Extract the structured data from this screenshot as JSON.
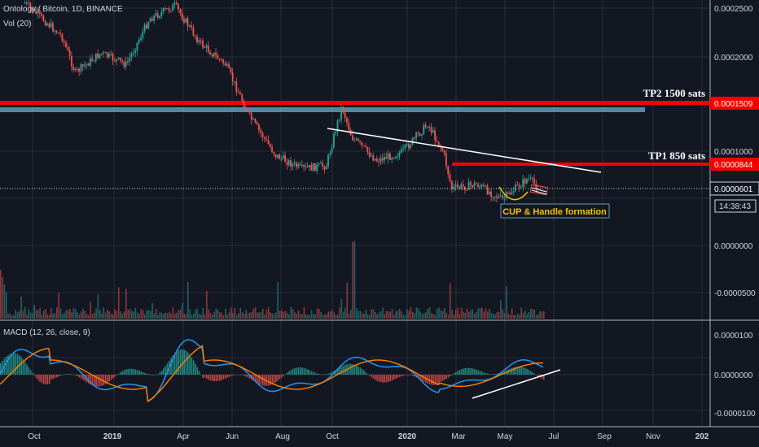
{
  "header": {
    "symbol_line": "Ontology / Bitcoin, 1D, BINANCE",
    "volume_label": "Vol (20)"
  },
  "indicators": {
    "macd_label": "MACD (12, 26, close, 9)"
  },
  "colors": {
    "background": "#131722",
    "grid": "#2a2e39",
    "axis_text": "#d1d4dc",
    "bull": "#26a69a",
    "bear": "#ef5350",
    "resistance": "#f50000",
    "zone": "#5d9cb8",
    "trendline": "#ffffff",
    "macd": "#2196f3",
    "signal": "#f57c00",
    "cup": "#f5c400"
  },
  "chart_data": {
    "type": "candlestick",
    "price_axis": {
      "ticks": [
        "0.0002500",
        "0.0002000",
        "0.0001000",
        "0.0000601"
      ],
      "highlighted": [
        {
          "label": "0.0001509",
          "value": 0.0001509
        },
        {
          "label": "0.0000844",
          "value": 8.44e-05
        }
      ],
      "current_price": "0.0000601",
      "countdown": "14:38:43"
    },
    "volume_axis": {
      "ticks": [
        "0.0000000",
        "-0.0000500"
      ]
    },
    "macd_axis": {
      "ticks": [
        "0.0000100",
        "0.0000000",
        "-0.0000100"
      ]
    },
    "x_axis": {
      "ticks": [
        "Oct",
        "2019",
        "Apr",
        "Jun",
        "Aug",
        "Oct",
        "2020",
        "Mar",
        "May",
        "Jul",
        "Sep",
        "Nov",
        "202"
      ]
    },
    "price_series": [
      {
        "date": "2018-10",
        "close": 0.00026
      },
      {
        "date": "2018-11-15",
        "close": 0.0002
      },
      {
        "date": "2018-12",
        "close": 0.00015
      },
      {
        "date": "2019-01",
        "close": 0.000175
      },
      {
        "date": "2019-02",
        "close": 0.00016
      },
      {
        "date": "2019-03",
        "close": 0.00023
      },
      {
        "date": "2019-04",
        "close": 0.000255
      },
      {
        "date": "2019-05",
        "close": 0.00019
      },
      {
        "date": "2019-06",
        "close": 0.00016
      },
      {
        "date": "2019-07",
        "close": 0.000105
      },
      {
        "date": "2019-08",
        "close": 7.8e-05
      },
      {
        "date": "2019-09",
        "close": 7e-05
      },
      {
        "date": "2019-10",
        "close": 7.2e-05
      },
      {
        "date": "2019-10-20",
        "close": 0.000115
      },
      {
        "date": "2019-11",
        "close": 9e-05
      },
      {
        "date": "2019-12",
        "close": 7.5e-05
      },
      {
        "date": "2020-01",
        "close": 8e-05
      },
      {
        "date": "2020-02",
        "close": 0.0001
      },
      {
        "date": "2020-02-20",
        "close": 8e-05
      },
      {
        "date": "2020-03",
        "close": 6e-05
      },
      {
        "date": "2020-04",
        "close": 6.2e-05
      },
      {
        "date": "2020-05",
        "close": 5.5e-05
      },
      {
        "date": "2020-06",
        "close": 6.5e-05
      },
      {
        "date": "2020-06-15",
        "close": 6.01e-05
      }
    ],
    "annotations": [
      {
        "text": "TP2 1500 sats",
        "level": 0.0001509
      },
      {
        "text": "TP1 850 sats",
        "level": 8.44e-05
      },
      {
        "text": "CUP & Handle formation"
      }
    ],
    "legend": "none",
    "grid": true
  }
}
